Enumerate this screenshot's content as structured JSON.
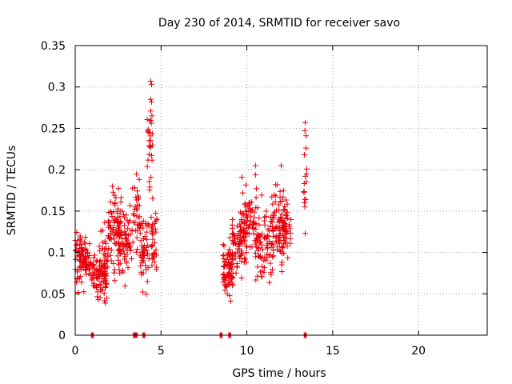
{
  "chart_data": {
    "type": "scatter",
    "title": "Day 230 of 2014, SRMTID for receiver savo",
    "xlabel": "GPS time / hours",
    "ylabel": "SRMTID / TECUs",
    "xlim": [
      0,
      24
    ],
    "ylim": [
      0,
      0.35
    ],
    "x_ticks": [
      0,
      5,
      10,
      15,
      20
    ],
    "y_ticks": [
      0,
      0.05,
      0.1,
      0.15,
      0.2,
      0.25,
      0.3,
      0.35
    ],
    "x_tick_labels": [
      "0",
      "5",
      "10",
      "15",
      "20"
    ],
    "y_tick_labels": [
      "0",
      "0.05",
      "0.1",
      "0.15",
      "0.2",
      "0.25",
      "0.3",
      "0.35"
    ],
    "grid": true,
    "marker": "+",
    "color": "#e8000b",
    "series": [
      {
        "name": "SRMTID",
        "clusters": [
          {
            "x_range": [
              0.0,
              0.6
            ],
            "y_range": [
              0.045,
              0.14
            ],
            "count": 70
          },
          {
            "x_range": [
              0.6,
              1.0
            ],
            "y_range": [
              0.05,
              0.12
            ],
            "count": 30
          },
          {
            "x_range": [
              1.0,
              1.9
            ],
            "y_range": [
              0.03,
              0.11
            ],
            "count": 80
          },
          {
            "x_range": [
              1.4,
              2.0
            ],
            "y_range": [
              0.05,
              0.15
            ],
            "count": 30
          },
          {
            "x_range": [
              1.9,
              2.7
            ],
            "y_range": [
              0.06,
              0.19
            ],
            "count": 80
          },
          {
            "x_range": [
              2.5,
              3.3
            ],
            "y_range": [
              0.05,
              0.17
            ],
            "count": 70
          },
          {
            "x_range": [
              3.3,
              3.8
            ],
            "y_range": [
              0.08,
              0.21
            ],
            "count": 40
          },
          {
            "x_range": [
              3.8,
              4.3
            ],
            "y_range": [
              0.035,
              0.16
            ],
            "count": 50
          },
          {
            "x_range": [
              4.2,
              4.5
            ],
            "y_range": [
              0.14,
              0.31
            ],
            "count": 25
          },
          {
            "x_range": [
              4.4,
              4.8
            ],
            "y_range": [
              0.06,
              0.17
            ],
            "count": 35
          },
          {
            "x_range": [
              8.6,
              9.2
            ],
            "y_range": [
              0.03,
              0.13
            ],
            "count": 80
          },
          {
            "x_range": [
              9.1,
              10.0
            ],
            "y_range": [
              0.06,
              0.16
            ],
            "count": 70
          },
          {
            "x_range": [
              9.6,
              10.6
            ],
            "y_range": [
              0.08,
              0.2
            ],
            "count": 70
          },
          {
            "x_range": [
              10.5,
              11.5
            ],
            "y_range": [
              0.045,
              0.18
            ],
            "count": 80
          },
          {
            "x_range": [
              11.4,
              12.3
            ],
            "y_range": [
              0.07,
              0.205
            ],
            "count": 80
          },
          {
            "x_range": [
              12.0,
              12.6
            ],
            "y_range": [
              0.07,
              0.18
            ],
            "count": 40
          },
          {
            "x_range": [
              13.3,
              13.5
            ],
            "y_range": [
              0.12,
              0.26
            ],
            "count": 12
          }
        ],
        "explicit_points": [
          {
            "x": 4.4,
            "y": 0.307
          },
          {
            "x": 4.45,
            "y": 0.303
          },
          {
            "x": 4.4,
            "y": 0.285
          },
          {
            "x": 4.45,
            "y": 0.282
          },
          {
            "x": 4.35,
            "y": 0.26
          },
          {
            "x": 4.3,
            "y": 0.245
          },
          {
            "x": 13.4,
            "y": 0.257
          },
          {
            "x": 13.45,
            "y": 0.241
          },
          {
            "x": 13.35,
            "y": 0.218
          },
          {
            "x": 13.4,
            "y": 0.192
          },
          {
            "x": 13.35,
            "y": 0.16
          },
          {
            "x": 13.4,
            "y": 0.123
          },
          {
            "x": 12.0,
            "y": 0.205
          },
          {
            "x": 10.5,
            "y": 0.205
          }
        ],
        "zero_points_x": [
          1.0,
          3.45,
          3.55,
          4.0,
          8.5,
          9.0,
          13.4
        ]
      }
    ]
  }
}
